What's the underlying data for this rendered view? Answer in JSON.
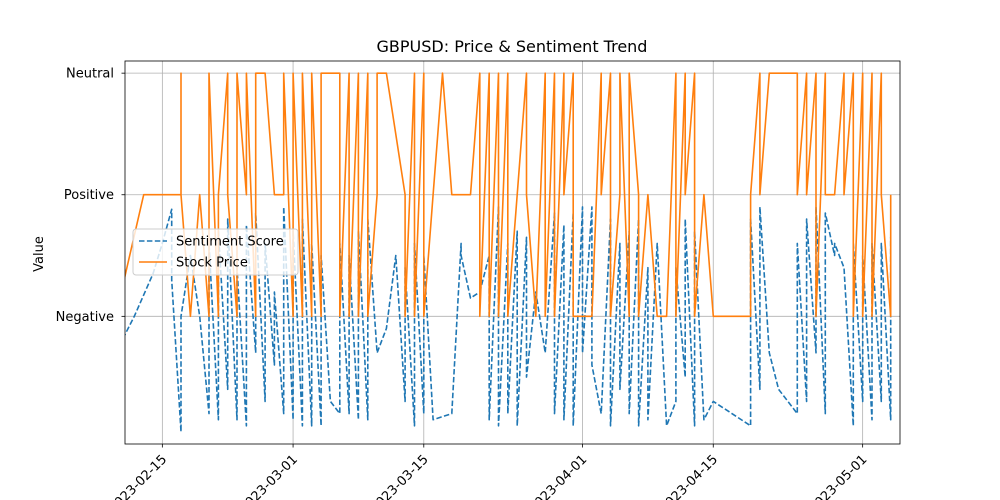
{
  "chart_data": {
    "type": "line",
    "title": "GBPUSD: Price & Sentiment Trend",
    "xlabel": "",
    "ylabel": "Value",
    "grid": true,
    "legend_position": "center-left",
    "x_ticks": [
      "2023-02-15",
      "2023-03-01",
      "2023-03-15",
      "2023-04-01",
      "2023-04-15",
      "2023-05-01"
    ],
    "xlim": [
      "2023-02-11",
      "2023-05-05"
    ],
    "y_categories": [
      "Negative",
      "Positive",
      "Neutral"
    ],
    "y_tick_values": [
      0,
      1,
      2
    ],
    "ylim": [
      -1.05,
      2.1
    ],
    "series": [
      {
        "name": "Sentiment Score",
        "style": "dashed",
        "color": "#1f77b4",
        "points": [
          [
            "2023-02-10",
            -0.3
          ],
          [
            "2023-02-12",
            0.0
          ],
          [
            "2023-02-14",
            0.35
          ],
          [
            "2023-02-15",
            0.6
          ],
          [
            "2023-02-16",
            0.88
          ],
          [
            "2023-02-16",
            0.3
          ],
          [
            "2023-02-17",
            -0.95
          ],
          [
            "2023-02-17",
            0.0
          ],
          [
            "2023-02-18",
            0.5
          ],
          [
            "2023-02-19",
            0.0
          ],
          [
            "2023-02-20",
            -0.8
          ],
          [
            "2023-02-20",
            0.6
          ],
          [
            "2023-02-21",
            -0.85
          ],
          [
            "2023-02-21",
            0.7
          ],
          [
            "2023-02-22",
            -0.6
          ],
          [
            "2023-02-22",
            0.8
          ],
          [
            "2023-02-23",
            -0.85
          ],
          [
            "2023-02-23",
            0.4
          ],
          [
            "2023-02-24",
            -0.9
          ],
          [
            "2023-02-24",
            0.75
          ],
          [
            "2023-02-25",
            -0.3
          ],
          [
            "2023-02-25",
            0.85
          ],
          [
            "2023-02-26",
            -0.7
          ],
          [
            "2023-02-26",
            0.6
          ],
          [
            "2023-02-27",
            -0.4
          ],
          [
            "2023-02-27",
            0.2
          ],
          [
            "2023-02-28",
            -0.8
          ],
          [
            "2023-02-28",
            0.9
          ],
          [
            "2023-03-01",
            -0.85
          ],
          [
            "2023-03-01",
            0.7
          ],
          [
            "2023-03-02",
            -0.9
          ],
          [
            "2023-03-02",
            0.8
          ],
          [
            "2023-03-03",
            -0.9
          ],
          [
            "2023-03-03",
            0.6
          ],
          [
            "2023-03-04",
            -0.9
          ],
          [
            "2023-03-04",
            0.5
          ],
          [
            "2023-03-05",
            -0.7
          ],
          [
            "2023-03-06",
            -0.8
          ],
          [
            "2023-03-06",
            0.6
          ],
          [
            "2023-03-07",
            -0.8
          ],
          [
            "2023-03-07",
            0.5
          ],
          [
            "2023-03-08",
            -0.85
          ],
          [
            "2023-03-08",
            0.7
          ],
          [
            "2023-03-09",
            -0.85
          ],
          [
            "2023-03-09",
            0.8
          ],
          [
            "2023-03-10",
            -0.3
          ],
          [
            "2023-03-11",
            -0.1
          ],
          [
            "2023-03-12",
            0.5
          ],
          [
            "2023-03-13",
            -0.7
          ],
          [
            "2023-03-13",
            0.4
          ],
          [
            "2023-03-14",
            -0.9
          ],
          [
            "2023-03-14",
            0.6
          ],
          [
            "2023-03-15",
            -0.8
          ],
          [
            "2023-03-15",
            0.5
          ],
          [
            "2023-03-16",
            -0.85
          ],
          [
            "2023-03-18",
            -0.8
          ],
          [
            "2023-03-19",
            0.6
          ],
          [
            "2023-03-19",
            0.5
          ],
          [
            "2023-03-20",
            0.15
          ],
          [
            "2023-03-21",
            0.2
          ],
          [
            "2023-03-22",
            0.5
          ],
          [
            "2023-03-22",
            -0.85
          ],
          [
            "2023-03-23",
            0.9
          ],
          [
            "2023-03-23",
            -0.9
          ],
          [
            "2023-03-24",
            0.6
          ],
          [
            "2023-03-24",
            -0.8
          ],
          [
            "2023-03-25",
            0.7
          ],
          [
            "2023-03-25",
            -0.9
          ],
          [
            "2023-03-26",
            0.65
          ],
          [
            "2023-03-26",
            -0.5
          ],
          [
            "2023-03-27",
            0.2
          ],
          [
            "2023-03-28",
            -0.3
          ],
          [
            "2023-03-29",
            0.85
          ],
          [
            "2023-03-29",
            -0.8
          ],
          [
            "2023-03-30",
            0.75
          ],
          [
            "2023-03-30",
            -0.85
          ],
          [
            "2023-03-31",
            0.85
          ],
          [
            "2023-03-31",
            -0.9
          ],
          [
            "2023-04-01",
            0.9
          ],
          [
            "2023-04-01",
            -0.3
          ],
          [
            "2023-04-02",
            0.9
          ],
          [
            "2023-04-02",
            -0.4
          ],
          [
            "2023-04-03",
            -0.8
          ],
          [
            "2023-04-04",
            0.8
          ],
          [
            "2023-04-04",
            -0.9
          ],
          [
            "2023-04-05",
            0.6
          ],
          [
            "2023-04-05",
            -0.6
          ],
          [
            "2023-04-06",
            0.7
          ],
          [
            "2023-04-06",
            -0.8
          ],
          [
            "2023-04-07",
            0.8
          ],
          [
            "2023-04-07",
            -0.9
          ],
          [
            "2023-04-08",
            0.4
          ],
          [
            "2023-04-08",
            -0.85
          ],
          [
            "2023-04-09",
            0.6
          ],
          [
            "2023-04-10",
            -0.9
          ],
          [
            "2023-04-11",
            -0.7
          ],
          [
            "2023-04-11",
            0.4
          ],
          [
            "2023-04-12",
            -0.5
          ],
          [
            "2023-04-12",
            0.8
          ],
          [
            "2023-04-13",
            -0.9
          ],
          [
            "2023-04-13",
            0.7
          ],
          [
            "2023-04-14",
            -0.85
          ],
          [
            "2023-04-15",
            -0.7
          ],
          [
            "2023-04-19",
            -0.9
          ],
          [
            "2023-04-19",
            0.8
          ],
          [
            "2023-04-20",
            -0.6
          ],
          [
            "2023-04-20",
            0.9
          ],
          [
            "2023-04-21",
            -0.3
          ],
          [
            "2023-04-22",
            -0.6
          ],
          [
            "2023-04-24",
            -0.8
          ],
          [
            "2023-04-24",
            0.6
          ],
          [
            "2023-04-25",
            -0.7
          ],
          [
            "2023-04-25",
            0.8
          ],
          [
            "2023-04-26",
            -0.3
          ],
          [
            "2023-04-26",
            0.9
          ],
          [
            "2023-04-27",
            -0.8
          ],
          [
            "2023-04-27",
            0.85
          ],
          [
            "2023-04-28",
            0.5
          ],
          [
            "2023-04-28",
            0.6
          ],
          [
            "2023-04-29",
            0.4
          ],
          [
            "2023-04-30",
            -0.9
          ],
          [
            "2023-04-30",
            0.6
          ],
          [
            "2023-05-01",
            -0.7
          ],
          [
            "2023-05-01",
            0.5
          ],
          [
            "2023-05-02",
            -0.85
          ],
          [
            "2023-05-02",
            0.6
          ],
          [
            "2023-05-03",
            -0.7
          ],
          [
            "2023-05-03",
            0.6
          ],
          [
            "2023-05-04",
            -0.85
          ],
          [
            "2023-05-04",
            0.5
          ],
          [
            "2023-05-04",
            0.65
          ]
        ]
      },
      {
        "name": "Stock Price",
        "style": "solid",
        "color": "#ff7f0e",
        "points": [
          [
            "2023-02-10",
            0
          ],
          [
            "2023-02-13",
            1
          ],
          [
            "2023-02-16",
            1
          ],
          [
            "2023-02-17",
            1
          ],
          [
            "2023-02-17",
            2
          ],
          [
            "2023-02-17",
            1
          ],
          [
            "2023-02-18",
            0
          ],
          [
            "2023-02-19",
            1
          ],
          [
            "2023-02-20",
            0
          ],
          [
            "2023-02-20",
            2
          ],
          [
            "2023-02-21",
            0
          ],
          [
            "2023-02-21",
            1
          ],
          [
            "2023-02-22",
            2
          ],
          [
            "2023-02-22",
            1
          ],
          [
            "2023-02-23",
            0
          ],
          [
            "2023-02-23",
            2
          ],
          [
            "2023-02-24",
            1
          ],
          [
            "2023-02-24",
            2
          ],
          [
            "2023-02-25",
            0
          ],
          [
            "2023-02-25",
            2
          ],
          [
            "2023-02-26",
            2
          ],
          [
            "2023-02-27",
            1
          ],
          [
            "2023-02-28",
            1
          ],
          [
            "2023-02-28",
            2
          ],
          [
            "2023-03-01",
            0
          ],
          [
            "2023-03-01",
            2
          ],
          [
            "2023-03-02",
            0
          ],
          [
            "2023-03-02",
            2
          ],
          [
            "2023-03-03",
            0
          ],
          [
            "2023-03-03",
            2
          ],
          [
            "2023-03-04",
            0
          ],
          [
            "2023-03-04",
            2
          ],
          [
            "2023-03-05",
            2
          ],
          [
            "2023-03-06",
            2
          ],
          [
            "2023-03-06",
            0
          ],
          [
            "2023-03-07",
            2
          ],
          [
            "2023-03-07",
            0
          ],
          [
            "2023-03-08",
            2
          ],
          [
            "2023-03-08",
            0
          ],
          [
            "2023-03-09",
            2
          ],
          [
            "2023-03-09",
            0
          ],
          [
            "2023-03-10",
            1
          ],
          [
            "2023-03-10",
            2
          ],
          [
            "2023-03-11",
            2
          ],
          [
            "2023-03-13",
            1
          ],
          [
            "2023-03-13",
            0
          ],
          [
            "2023-03-14",
            2
          ],
          [
            "2023-03-14",
            0
          ],
          [
            "2023-03-15",
            2
          ],
          [
            "2023-03-15",
            0
          ],
          [
            "2023-03-16",
            1
          ],
          [
            "2023-03-17",
            2
          ],
          [
            "2023-03-18",
            1
          ],
          [
            "2023-03-20",
            1
          ],
          [
            "2023-03-21",
            2
          ],
          [
            "2023-03-21",
            0
          ],
          [
            "2023-03-22",
            2
          ],
          [
            "2023-03-22",
            0
          ],
          [
            "2023-03-23",
            2
          ],
          [
            "2023-03-23",
            0
          ],
          [
            "2023-03-24",
            2
          ],
          [
            "2023-03-24",
            0
          ],
          [
            "2023-03-25",
            1
          ],
          [
            "2023-03-26",
            2
          ],
          [
            "2023-03-26",
            1
          ],
          [
            "2023-03-27",
            0
          ],
          [
            "2023-03-28",
            2
          ],
          [
            "2023-03-28",
            0
          ],
          [
            "2023-03-29",
            2
          ],
          [
            "2023-03-29",
            0
          ],
          [
            "2023-03-30",
            2
          ],
          [
            "2023-03-30",
            1
          ],
          [
            "2023-03-31",
            2
          ],
          [
            "2023-03-31",
            0
          ],
          [
            "2023-04-01",
            0
          ],
          [
            "2023-04-02",
            0
          ],
          [
            "2023-04-03",
            2
          ],
          [
            "2023-04-03",
            1
          ],
          [
            "2023-04-04",
            2
          ],
          [
            "2023-04-04",
            0
          ],
          [
            "2023-04-05",
            1
          ],
          [
            "2023-04-05",
            2
          ],
          [
            "2023-04-06",
            0
          ],
          [
            "2023-04-06",
            2
          ],
          [
            "2023-04-07",
            1
          ],
          [
            "2023-04-07",
            0
          ],
          [
            "2023-04-08",
            1
          ],
          [
            "2023-04-09",
            0
          ],
          [
            "2023-04-10",
            0
          ],
          [
            "2023-04-11",
            2
          ],
          [
            "2023-04-11",
            0
          ],
          [
            "2023-04-12",
            2
          ],
          [
            "2023-04-12",
            1
          ],
          [
            "2023-04-13",
            2
          ],
          [
            "2023-04-13",
            0
          ],
          [
            "2023-04-14",
            1
          ],
          [
            "2023-04-15",
            0
          ],
          [
            "2023-04-19",
            0
          ],
          [
            "2023-04-19",
            1
          ],
          [
            "2023-04-20",
            2
          ],
          [
            "2023-04-20",
            1
          ],
          [
            "2023-04-21",
            2
          ],
          [
            "2023-04-24",
            2
          ],
          [
            "2023-04-24",
            1
          ],
          [
            "2023-04-25",
            2
          ],
          [
            "2023-04-25",
            1
          ],
          [
            "2023-04-26",
            2
          ],
          [
            "2023-04-26",
            0
          ],
          [
            "2023-04-27",
            2
          ],
          [
            "2023-04-27",
            1
          ],
          [
            "2023-04-28",
            1
          ],
          [
            "2023-04-29",
            2
          ],
          [
            "2023-04-29",
            1
          ],
          [
            "2023-04-30",
            2
          ],
          [
            "2023-04-30",
            0
          ],
          [
            "2023-05-01",
            2
          ],
          [
            "2023-05-01",
            0
          ],
          [
            "2023-05-02",
            2
          ],
          [
            "2023-05-02",
            0
          ],
          [
            "2023-05-03",
            2
          ],
          [
            "2023-05-03",
            1
          ],
          [
            "2023-05-04",
            0
          ],
          [
            "2023-05-04",
            1
          ]
        ]
      }
    ]
  }
}
